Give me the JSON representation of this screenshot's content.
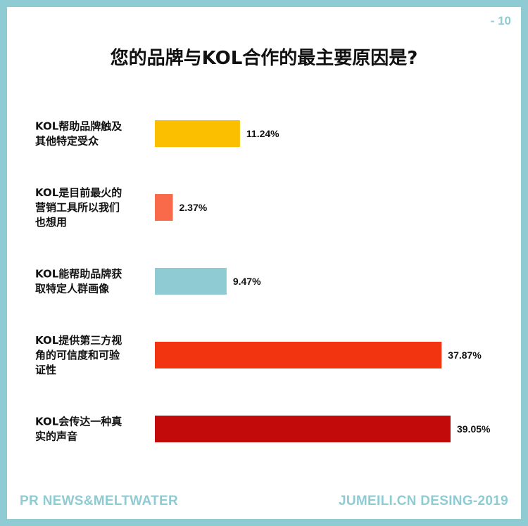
{
  "page_number": "- 10",
  "footer": {
    "source": "PR NEWS&MELTWATER",
    "credit": "JUMEILI.CN DESING-2019"
  },
  "chart_data": {
    "type": "bar",
    "orientation": "horizontal",
    "title": "您的品牌与KOL合作的最主要原因是?",
    "categories": [
      "KOL帮助品牌触及其他特定受众",
      "KOL是目前最火的营销工具所以我们也想用",
      "KOL能帮助品牌获取特定人群画像",
      "KOL提供第三方视角的可信度和可验证性",
      "KOL会传达一种真实的声音"
    ],
    "category_lines": [
      [
        "KOL帮助品牌触及",
        "其他特定受众"
      ],
      [
        "KOL是目前最火的",
        "营销工具所以我们",
        "也想用"
      ],
      [
        "KOL能帮助品牌获",
        "取特定人群画像"
      ],
      [
        "KOL提供第三方视",
        "角的可信度和可验",
        "证性"
      ],
      [
        "KOL会传达一种真",
        "实的声音"
      ]
    ],
    "values": [
      11.24,
      2.37,
      9.47,
      37.87,
      39.05
    ],
    "value_labels": [
      "11.24%",
      "2.37%",
      "9.47%",
      "37.87%",
      "39.05%"
    ],
    "colors": [
      "#fbbf00",
      "#f86a4a",
      "#8ecbd3",
      "#f33411",
      "#c30a0a"
    ],
    "xlim": [
      0,
      39.05
    ],
    "grid": false,
    "legend": "none"
  }
}
